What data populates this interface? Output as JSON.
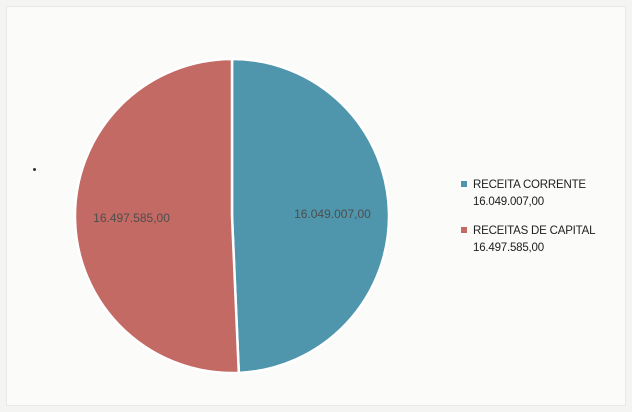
{
  "chart_data": {
    "type": "pie",
    "categories": [
      "RECEITA CORRENTE",
      "RECEITAS DE CAPITAL"
    ],
    "values": [
      16049007.0,
      16497585.0
    ],
    "value_labels": [
      "16.049.007,00",
      "16.497.585,00"
    ],
    "colors": [
      "#4f96ad",
      "#c46a64"
    ],
    "title": "",
    "legend_position": "right"
  }
}
